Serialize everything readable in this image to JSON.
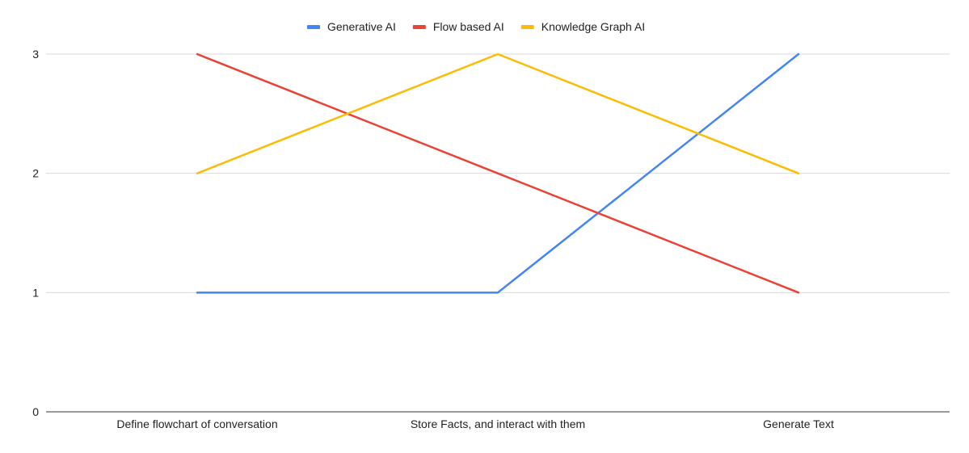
{
  "chart_data": {
    "type": "line",
    "title": "",
    "xlabel": "",
    "ylabel": "",
    "categories": [
      "Define flowchart of conversation",
      "Store Facts, and interact with them",
      "Generate Text"
    ],
    "series": [
      {
        "name": "Generative AI",
        "values": [
          1,
          1,
          3
        ],
        "color": "#4285f4"
      },
      {
        "name": "Flow based AI",
        "values": [
          3,
          2,
          1
        ],
        "color": "#ea4335"
      },
      {
        "name": "Knowledge Graph AI",
        "values": [
          2,
          3,
          2
        ],
        "color": "#fbbc04"
      }
    ],
    "ylim": [
      0,
      3
    ],
    "yticks": [
      0,
      1,
      2,
      3
    ],
    "grid": true,
    "legend_position": "top-center"
  }
}
